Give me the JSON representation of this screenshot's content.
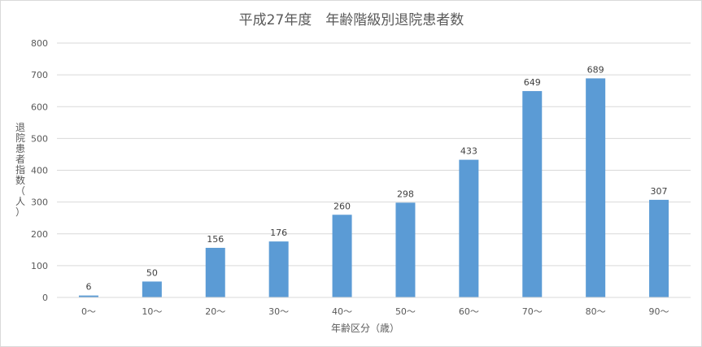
{
  "chart_data": {
    "type": "bar",
    "title": "平成27年度　年齢階級別退院患者数",
    "xlabel": "年齢区分（歳）",
    "ylabel": "退院患者指数（人）",
    "categories": [
      "0～",
      "10～",
      "20～",
      "30～",
      "40～",
      "50～",
      "60～",
      "70～",
      "80～",
      "90～"
    ],
    "values": [
      6,
      50,
      156,
      176,
      260,
      298,
      433,
      649,
      689,
      307
    ],
    "ylim": [
      0,
      800
    ],
    "yticks": [
      0,
      100,
      200,
      300,
      400,
      500,
      600,
      700,
      800
    ],
    "grid": true,
    "legend": "none",
    "bar_color": "#5b9bd5",
    "grid_color": "#d9d9d9"
  }
}
